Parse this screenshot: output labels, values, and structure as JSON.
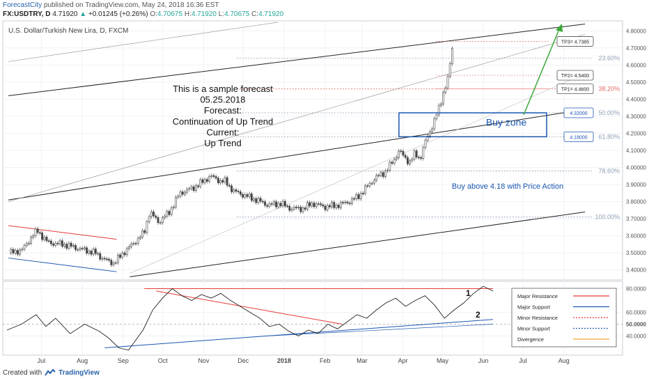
{
  "header": {
    "brand": "ForecastCity",
    "published": " published on TradingView.com, May 24, 2018 16:36 EST",
    "symbol": "FX:USDTRY, D",
    "price": "4.71920",
    "change": "+0.01245 (+0.26%)",
    "o_label": "O:",
    "o_value": "4.70675",
    "h_label": "H:",
    "h_value": "4.71920",
    "l_label": "L:",
    "l_value": "4.70675",
    "c_label": "C:",
    "c_value": "4.71920"
  },
  "chart_title": "U.S. Dollar/Turkish New Lira, D, FXCM",
  "footer": {
    "created": "Created with",
    "brand": "TradingView"
  },
  "colors": {
    "grid": "#eef1f5",
    "axis": "#9aa3ad",
    "fib": "#8fa0b5",
    "fib_red": "#e36b6b",
    "candle": "#444444",
    "trend": "#222222",
    "red_line": "#e53935",
    "blue": "#1a56b0",
    "green": "#3aa83a",
    "rsi": "#222222"
  },
  "chart_data": {
    "type": "candlestick",
    "ylim": [
      3.35,
      4.85
    ],
    "y_ticks": [
      3.4,
      3.5,
      3.6,
      3.7,
      3.8,
      3.9,
      4.0,
      4.1,
      4.2,
      4.3,
      4.4,
      4.5,
      4.6,
      4.7,
      4.8
    ],
    "y_tick_labels": [
      "3.40000",
      "3.50000",
      "3.60000",
      "3.70000",
      "3.80000",
      "3.90000",
      "4.00000",
      "4.10000",
      "4.20000",
      "4.30000",
      "4.40000",
      "4.50000",
      "4.60000",
      "4.70000",
      "4.80000"
    ],
    "x_tick_labels": [
      "Jul",
      "Aug",
      "Sep",
      "Oct",
      "Nov",
      "Dec",
      "2018",
      "Feb",
      "Mar",
      "Apr",
      "May",
      "Jun",
      "Jul",
      "Aug"
    ],
    "price_path": [
      [
        "2017-06-22",
        3.5
      ],
      [
        "2017-07-01",
        3.52
      ],
      [
        "2017-07-08",
        3.6
      ],
      [
        "2017-07-12",
        3.63
      ],
      [
        "2017-07-20",
        3.56
      ],
      [
        "2017-08-01",
        3.55
      ],
      [
        "2017-08-15",
        3.52
      ],
      [
        "2017-08-25",
        3.5
      ],
      [
        "2017-09-01",
        3.46
      ],
      [
        "2017-09-08",
        3.44
      ],
      [
        "2017-09-15",
        3.5
      ],
      [
        "2017-09-22",
        3.55
      ],
      [
        "2017-10-01",
        3.62
      ],
      [
        "2017-10-05",
        3.74
      ],
      [
        "2017-10-12",
        3.68
      ],
      [
        "2017-10-20",
        3.74
      ],
      [
        "2017-10-28",
        3.85
      ],
      [
        "2017-11-07",
        3.88
      ],
      [
        "2017-11-15",
        3.92
      ],
      [
        "2017-11-20",
        3.95
      ],
      [
        "2017-11-28",
        3.92
      ],
      [
        "2017-12-01",
        3.92
      ],
      [
        "2017-12-08",
        3.86
      ],
      [
        "2017-12-15",
        3.84
      ],
      [
        "2017-12-25",
        3.81
      ],
      [
        "2018-01-03",
        3.78
      ],
      [
        "2018-01-12",
        3.79
      ],
      [
        "2018-01-20",
        3.76
      ],
      [
        "2018-01-30",
        3.76
      ],
      [
        "2018-02-05",
        3.79
      ],
      [
        "2018-02-15",
        3.77
      ],
      [
        "2018-02-25",
        3.78
      ],
      [
        "2018-03-05",
        3.8
      ],
      [
        "2018-03-12",
        3.83
      ],
      [
        "2018-03-18",
        3.88
      ],
      [
        "2018-03-25",
        3.94
      ],
      [
        "2018-04-01",
        3.97
      ],
      [
        "2018-04-08",
        4.04
      ],
      [
        "2018-04-12",
        4.1
      ],
      [
        "2018-04-16",
        4.06
      ],
      [
        "2018-04-20",
        4.03
      ],
      [
        "2018-04-24",
        4.08
      ],
      [
        "2018-04-28",
        4.05
      ],
      [
        "2018-05-02",
        4.15
      ],
      [
        "2018-05-06",
        4.22
      ],
      [
        "2018-05-10",
        4.3
      ],
      [
        "2018-05-13",
        4.36
      ],
      [
        "2018-05-16",
        4.45
      ],
      [
        "2018-05-19",
        4.52
      ],
      [
        "2018-05-21",
        4.62
      ],
      [
        "2018-05-23",
        4.73
      ],
      [
        "2018-05-24",
        4.72
      ]
    ],
    "fib_levels": [
      {
        "label": "23.60%",
        "value": 4.64
      },
      {
        "label": "38.20%",
        "value": 4.46,
        "color": "red"
      },
      {
        "label": "50.00%",
        "value": 4.32
      },
      {
        "label": "61.80%",
        "value": 4.18
      },
      {
        "label": "78.60%",
        "value": 3.98
      },
      {
        "label": "100.00%",
        "value": 3.71
      }
    ],
    "targets": [
      {
        "label": "TP3= 4.7385",
        "value": 4.7385
      },
      {
        "label": "TP2= 4.5400",
        "value": 4.54
      },
      {
        "label": "TP1= 4.4600",
        "value": 4.46
      }
    ],
    "zone": {
      "label": "Buy zone",
      "top": 4.32,
      "bottom": 4.18,
      "top_label": "4.32000",
      "bottom_label": "4.18000"
    },
    "annotations": {
      "forecast": [
        "This is a sample forecast",
        "05.25.2018",
        "Forecast:",
        "Continuation of Up Trend",
        "Current:",
        "Up Trend"
      ],
      "buy_above": "Buy above 4.18 with Price Action"
    },
    "rsi": {
      "ylim": [
        25,
        85
      ],
      "y_tick_labels": [
        "80.0000",
        "60.0000",
        "50.0000",
        "40.0000"
      ],
      "y_ticks": [
        80,
        60,
        50,
        40
      ],
      "markers": [
        "1",
        "2"
      ],
      "legend": [
        {
          "label": "Major Resistance",
          "color": "#e53935",
          "style": "solid"
        },
        {
          "label": "Major Support",
          "color": "#1a56b0",
          "style": "solid"
        },
        {
          "label": "Minor Resistance",
          "color": "#e53935",
          "style": "dotted"
        },
        {
          "label": "Minor Support",
          "color": "#1a56b0",
          "style": "dotted"
        },
        {
          "label": "Divergence",
          "color": "#f0a830",
          "style": "solid"
        }
      ],
      "path": [
        [
          0,
          45
        ],
        [
          0.03,
          50
        ],
        [
          0.06,
          58
        ],
        [
          0.08,
          48
        ],
        [
          0.1,
          55
        ],
        [
          0.13,
          42
        ],
        [
          0.16,
          50
        ],
        [
          0.19,
          44
        ],
        [
          0.21,
          38
        ],
        [
          0.23,
          30
        ],
        [
          0.25,
          28
        ],
        [
          0.28,
          45
        ],
        [
          0.3,
          62
        ],
        [
          0.32,
          72
        ],
        [
          0.34,
          80
        ],
        [
          0.36,
          74
        ],
        [
          0.38,
          70
        ],
        [
          0.4,
          75
        ],
        [
          0.42,
          72
        ],
        [
          0.44,
          76
        ],
        [
          0.46,
          70
        ],
        [
          0.48,
          65
        ],
        [
          0.5,
          60
        ],
        [
          0.52,
          55
        ],
        [
          0.54,
          48
        ],
        [
          0.56,
          50
        ],
        [
          0.58,
          44
        ],
        [
          0.6,
          40
        ],
        [
          0.62,
          45
        ],
        [
          0.64,
          42
        ],
        [
          0.66,
          50
        ],
        [
          0.68,
          46
        ],
        [
          0.7,
          52
        ],
        [
          0.72,
          58
        ],
        [
          0.74,
          55
        ],
        [
          0.76,
          62
        ],
        [
          0.78,
          68
        ],
        [
          0.8,
          72
        ],
        [
          0.82,
          65
        ],
        [
          0.84,
          70
        ],
        [
          0.86,
          74
        ],
        [
          0.88,
          66
        ],
        [
          0.9,
          55
        ],
        [
          0.92,
          62
        ],
        [
          0.94,
          68
        ],
        [
          0.96,
          76
        ],
        [
          0.98,
          82
        ],
        [
          1.0,
          78
        ]
      ]
    }
  }
}
